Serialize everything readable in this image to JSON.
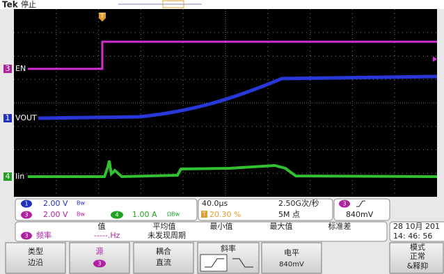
{
  "header": {
    "brand": "Tek",
    "status": "停止"
  },
  "trigger_marker": "T",
  "channels": [
    {
      "number": "3",
      "label": "EN"
    },
    {
      "number": "1",
      "label": "VOUT"
    },
    {
      "number": "4",
      "label": "Iin"
    }
  ],
  "readout": {
    "ch1": {
      "number": "1",
      "scale": "2.00 V",
      "bw": "Bw"
    },
    "ch3": {
      "number": "3",
      "scale": "2.00 V",
      "bw": "Bw"
    },
    "ch4": {
      "number": "4",
      "scale": "1.00 A",
      "bw": "ΩBw"
    },
    "timebase": "40.0µs",
    "trigger_position_icon": "T",
    "trigger_position": "20.30 %",
    "sample_rate": "2.50G次/秒",
    "record_length": "5M 点",
    "trigger_source": "3",
    "trigger_level": "840mV"
  },
  "measurement": {
    "source": "3",
    "name": "频率",
    "value": "-----.Hz",
    "headers": [
      "值",
      "平均值",
      "最小值",
      "最大值",
      "标准差"
    ],
    "status": "未发现周期"
  },
  "datetime": {
    "date": "28 10月 201",
    "time": "14: 46: 56"
  },
  "menu": [
    {
      "title": "类型",
      "value": "边沿"
    },
    {
      "title": "源",
      "value": "3"
    },
    {
      "title": "耦合",
      "value": "直流"
    },
    {
      "title": "斜率"
    },
    {
      "title": "电平",
      "value": "840mV"
    },
    {
      "title": "模式",
      "value": "正常",
      "value2": "&释抑"
    }
  ]
}
